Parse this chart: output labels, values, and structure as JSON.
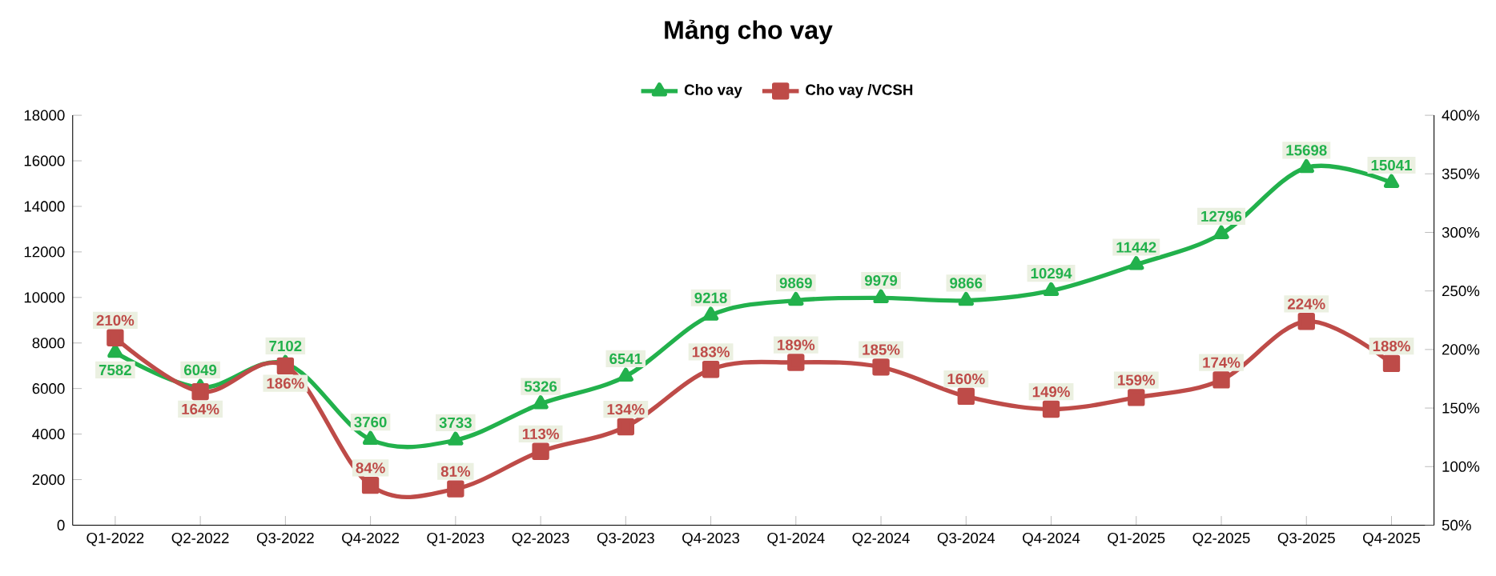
{
  "chart_data": {
    "type": "line",
    "title": "Mảng cho vay",
    "categories": [
      "Q1-2022",
      "Q2-2022",
      "Q3-2022",
      "Q4-2022",
      "Q1-2023",
      "Q2-2023",
      "Q3-2023",
      "Q4-2023",
      "Q1-2024",
      "Q2-2024",
      "Q3-2024",
      "Q4-2024",
      "Q1-2025",
      "Q2-2025",
      "Q3-2025",
      "Q4-2025"
    ],
    "series": [
      {
        "name": "Cho vay",
        "color": "#22b14c",
        "marker": "triangle",
        "values": [
          7582,
          6049,
          7102,
          3760,
          3733,
          5326,
          6541,
          9218,
          9869,
          9979,
          9866,
          10294,
          11442,
          12796,
          15698,
          15041
        ],
        "value_labels": [
          "7582",
          "6049",
          "7102",
          "3760",
          "3733",
          "5326",
          "6541",
          "9218",
          "9869",
          "9979",
          "9866",
          "10294",
          "11442",
          "12796",
          "15698",
          "15041"
        ]
      },
      {
        "name": "Cho vay /VCSH",
        "color": "#be4b48",
        "marker": "square",
        "axis": "y2",
        "values": [
          210,
          164,
          186,
          84,
          81,
          113,
          134,
          183,
          189,
          185,
          160,
          149,
          159,
          174,
          224,
          188
        ],
        "value_labels": [
          "210%",
          "164%",
          "186%",
          "84%",
          "81%",
          "113%",
          "134%",
          "183%",
          "189%",
          "185%",
          "160%",
          "149%",
          "159%",
          "174%",
          "224%",
          "188%"
        ]
      }
    ],
    "ylim": [
      0,
      18000
    ],
    "yticks": [
      0,
      2000,
      4000,
      6000,
      8000,
      10000,
      12000,
      14000,
      16000,
      18000
    ],
    "y2lim": [
      50,
      400
    ],
    "y2ticks": [
      {
        "value": 50,
        "label": "50%"
      },
      {
        "value": 100,
        "label": "100%"
      },
      {
        "value": 150,
        "label": "150%"
      },
      {
        "value": 200,
        "label": "200%"
      },
      {
        "value": 250,
        "label": "250%"
      },
      {
        "value": 300,
        "label": "300%"
      },
      {
        "value": 350,
        "label": "350%"
      },
      {
        "value": 400,
        "label": "400%"
      }
    ],
    "legend": "top",
    "grid": false
  }
}
